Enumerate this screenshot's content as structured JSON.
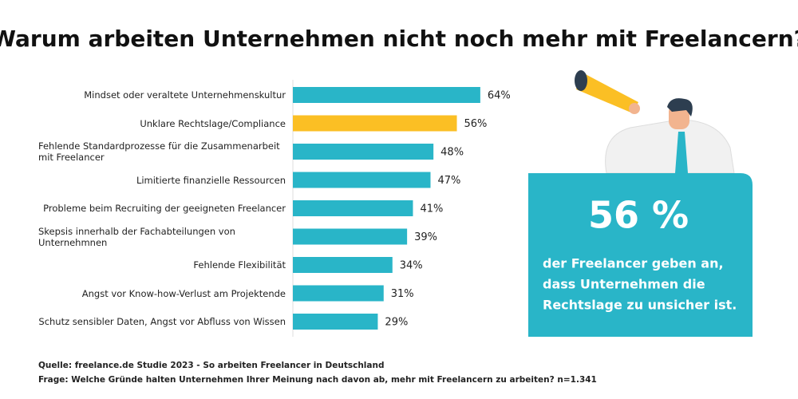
{
  "chart_data": {
    "type": "bar",
    "orientation": "horizontal",
    "title": "Warum arbeiten Unternehmen nicht noch mehr mit Freelancern?",
    "categories": [
      "Mindset oder veraltete Unternehmenskultur",
      "Unklare Rechtslage/Compliance",
      "Fehlende Standardprozesse für die Zusammenarbeit mit Freelancer",
      "Limitierte finanzielle Ressourcen",
      "Probleme beim Recruiting der geeigneten Freelancer",
      "Skepsis innerhalb der Fachabteilungen von Unternehmnen",
      "Fehlende Flexibilität",
      "Angst vor Know-how-Verlust am Projektende",
      "Schutz sensibler Daten, Angst vor Abfluss von Wissen"
    ],
    "values": [
      64,
      56,
      48,
      47,
      41,
      39,
      34,
      31,
      29
    ],
    "value_labels": [
      "64%",
      "56%",
      "48%",
      "47%",
      "41%",
      "39%",
      "34%",
      "31%",
      "29%"
    ],
    "colors": [
      "#29b5c8",
      "#fbbf24",
      "#29b5c8",
      "#29b5c8",
      "#29b5c8",
      "#29b5c8",
      "#29b5c8",
      "#29b5c8",
      "#29b5c8"
    ],
    "xlim": [
      0,
      100
    ],
    "callout": {
      "headline": "56 %",
      "lines": [
        "der Freelancer geben an,",
        "dass Unternehmen die",
        "Rechtslage zu unsicher ist."
      ]
    },
    "source": "Quelle: freelance.de Studie 2023 - So arbeiten Freelancer in Deutschland",
    "note": "Frage: Welche Gründe halten Unternehmen Ihrer Meinung nach davon ab, mehr mit Freelancern zu arbeiten? n=1.341"
  }
}
